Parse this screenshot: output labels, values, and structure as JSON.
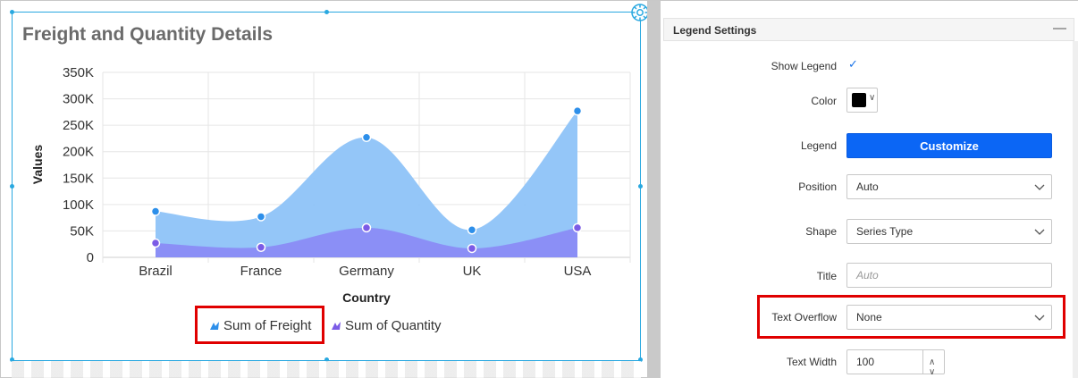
{
  "chart_data": {
    "type": "area",
    "title": "Freight and Quantity Details",
    "xlabel": "Country",
    "ylabel": "Values",
    "categories": [
      "Brazil",
      "France",
      "Germany",
      "UK",
      "USA"
    ],
    "y_ticks": [
      "350K",
      "300K",
      "250K",
      "200K",
      "150K",
      "100K",
      "50K",
      "0"
    ],
    "series": [
      {
        "name": "Sum of Freight",
        "values": [
          87000,
          77000,
          227000,
          52000,
          277000
        ],
        "color": "#8ec3f8",
        "marker": "#2d8fea"
      },
      {
        "name": "Sum of Quantity",
        "values": [
          27000,
          19000,
          56000,
          17000,
          56000
        ],
        "color": "#8a8cf5",
        "marker": "#7b5be6"
      }
    ],
    "ylim": [
      0,
      350000
    ],
    "grid": true,
    "legend_position": "bottom"
  },
  "panel": {
    "title": "Legend Settings",
    "collapse_icon": "minus-icon",
    "show_legend_label": "Show Legend",
    "show_legend_checked": "✓",
    "color_label": "Color",
    "color_value": "#000000",
    "legend_label": "Legend",
    "customize_button": "Customize",
    "position_label": "Position",
    "position_value": "Auto",
    "shape_label": "Shape",
    "shape_value": "Series Type",
    "title_label": "Title",
    "title_placeholder": "Auto",
    "text_overflow_label": "Text Overflow",
    "text_overflow_value": "None",
    "text_width_label": "Text Width",
    "text_width_value": "100"
  },
  "accent_colors": {
    "highlight": "#e00000",
    "primary_button": "#0b66f5",
    "selection": "#29a8e0"
  }
}
